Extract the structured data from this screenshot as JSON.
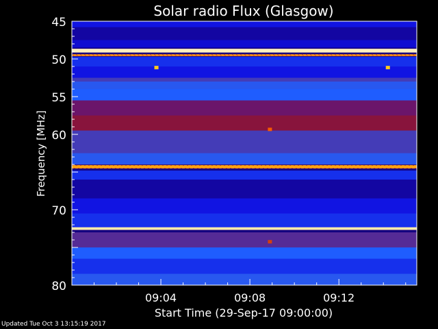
{
  "chart_data": {
    "type": "heatmap",
    "title": "Solar radio Flux (Glasgow)",
    "xlabel": "Start Time (29-Sep-17 09:00:00)",
    "ylabel": "Frequency [MHz]",
    "xlim_minutes": [
      0,
      15.5
    ],
    "ylim": [
      45,
      80
    ],
    "y_inverted": true,
    "x_ticks": [
      {
        "minute": 4,
        "label": "09:04"
      },
      {
        "minute": 8,
        "label": "09:08"
      },
      {
        "minute": 12,
        "label": "09:12"
      }
    ],
    "y_ticks": [
      45,
      50,
      55,
      60,
      65,
      70,
      75,
      80
    ],
    "y_tick_labels": [
      "45",
      "50",
      "55",
      "60",
      "",
      "70",
      "",
      "80"
    ],
    "colormap": [
      "#140080",
      "#1010e0",
      "#2060ff",
      "#701060",
      "#a01818",
      "#ff6000",
      "#ffd020",
      "#fff0c0"
    ],
    "background_rows": [
      {
        "from": 45.0,
        "to": 45.8,
        "level": 0.15
      },
      {
        "from": 45.8,
        "to": 47.5,
        "level": 0.05
      },
      {
        "from": 47.5,
        "to": 48.5,
        "level": 0.12
      },
      {
        "from": 49.7,
        "to": 51.0,
        "level": 0.2
      },
      {
        "from": 51.0,
        "to": 52.5,
        "level": 0.15
      },
      {
        "from": 52.5,
        "to": 53.0,
        "level": 0.35
      },
      {
        "from": 53.0,
        "to": 54.0,
        "level": 0.3
      },
      {
        "from": 54.0,
        "to": 55.5,
        "level": 0.28
      },
      {
        "from": 55.5,
        "to": 57.5,
        "level": 0.42
      },
      {
        "from": 57.5,
        "to": 59.5,
        "level": 0.5
      },
      {
        "from": 59.5,
        "to": 62.5,
        "level": 0.35
      },
      {
        "from": 62.5,
        "to": 64.0,
        "level": 0.3
      },
      {
        "from": 64.8,
        "to": 66.0,
        "level": 0.2
      },
      {
        "from": 66.0,
        "to": 68.5,
        "level": 0.05
      },
      {
        "from": 68.5,
        "to": 70.5,
        "level": 0.15
      },
      {
        "from": 70.5,
        "to": 72.5,
        "level": 0.2
      },
      {
        "from": 73.0,
        "to": 75.0,
        "level": 0.38
      },
      {
        "from": 75.0,
        "to": 76.5,
        "level": 0.28
      },
      {
        "from": 76.5,
        "to": 78.5,
        "level": 0.2
      },
      {
        "from": 78.5,
        "to": 80.0,
        "level": 0.3
      }
    ],
    "bright_lines": [
      {
        "freq": 48.9,
        "width": 0.5,
        "level": 1.0
      },
      {
        "freq": 49.5,
        "width": 0.25,
        "level": 0.78,
        "dashed": true
      },
      {
        "freq": 64.3,
        "width": 0.45,
        "level": 0.8,
        "dashed": true
      },
      {
        "freq": 72.5,
        "width": 0.35,
        "level": 0.98
      }
    ],
    "hot_spots": [
      {
        "minute": 3.8,
        "freq": 51.1,
        "level": 0.85
      },
      {
        "minute": 14.2,
        "freq": 51.1,
        "level": 0.85
      },
      {
        "minute": 8.9,
        "freq": 59.3,
        "level": 0.7
      },
      {
        "minute": 8.9,
        "freq": 74.2,
        "level": 0.65
      }
    ],
    "footer": "Updated Tue Oct  3 13:15:19 2017"
  }
}
